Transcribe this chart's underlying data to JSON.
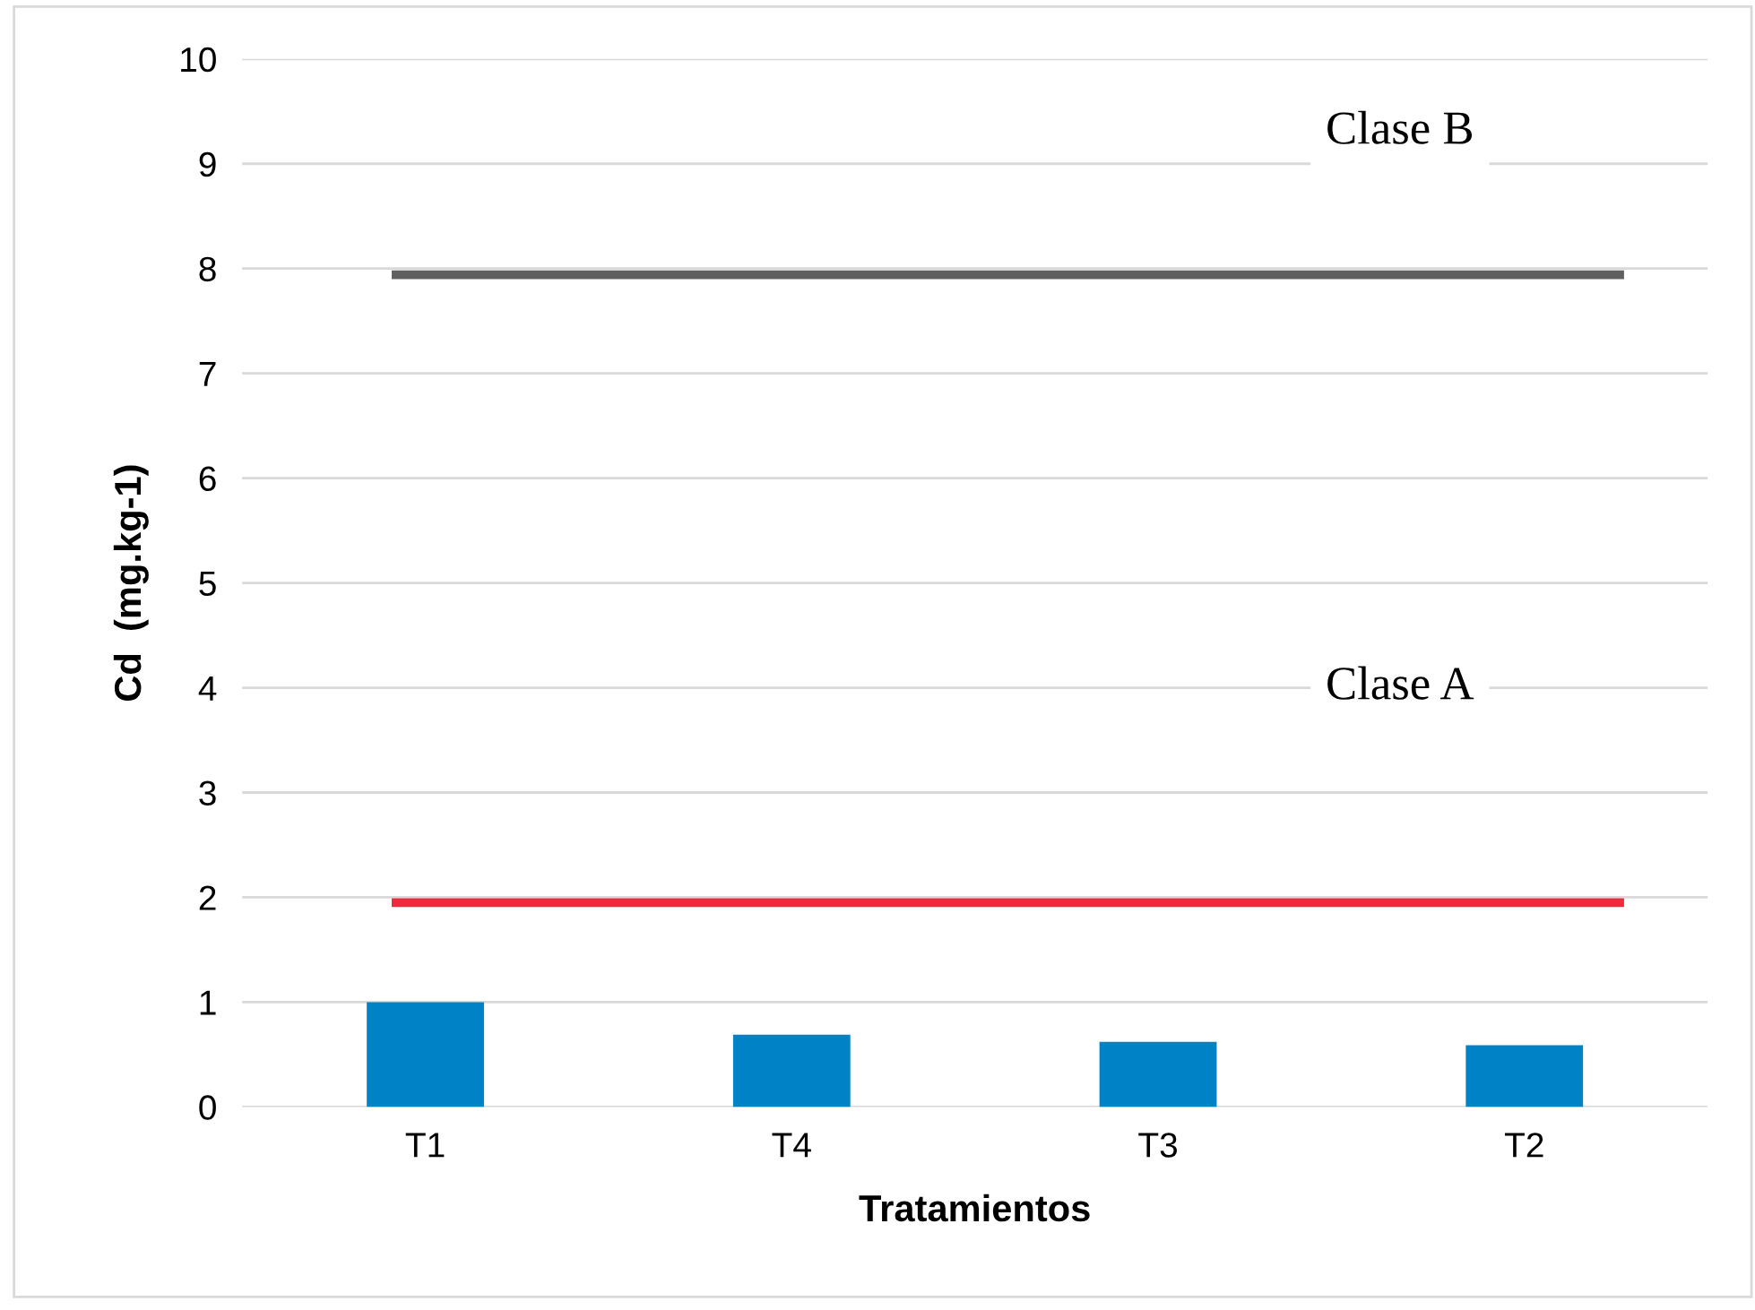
{
  "chart_data": {
    "type": "bar",
    "xlabel": "Tratamientos",
    "ylabel": "Cd  (mg.kg-1)",
    "categories": [
      "T1",
      "T4",
      "T3",
      "T2"
    ],
    "series": [
      {
        "color": "#0083c6",
        "values": [
          1.0,
          0.69,
          0.62,
          0.59
        ]
      }
    ],
    "ylim": [
      0,
      10
    ],
    "yticks": [
      0,
      1,
      2,
      3,
      4,
      5,
      6,
      7,
      8,
      9,
      10
    ],
    "grid": "y",
    "legend": false,
    "annotations": [
      "Clase A",
      "Clase B"
    ],
    "ref_lines": [
      {
        "axis": "y",
        "value": 1.95,
        "color": "#ee2a3c"
      },
      {
        "axis": "y",
        "value": 7.94,
        "color": "#606060"
      }
    ]
  }
}
